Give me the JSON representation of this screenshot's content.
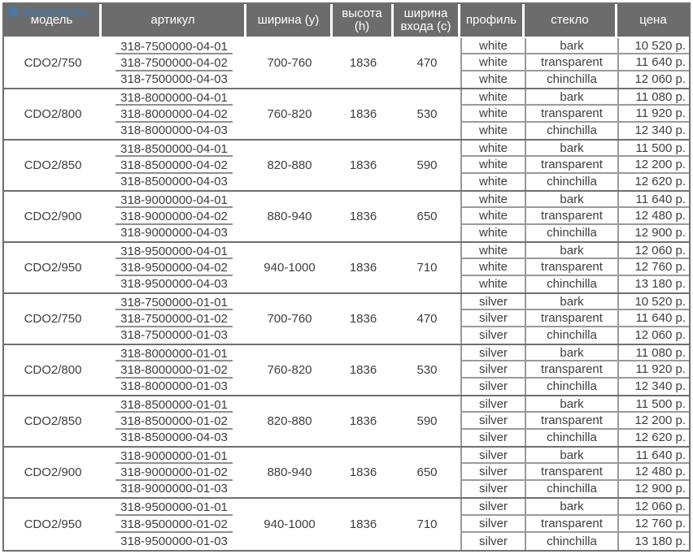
{
  "watermark": {
    "text": "Аквалель"
  },
  "table": {
    "columns": [
      "модель",
      "артикул",
      "ширина (y)",
      "высота (h)",
      "ширина входа (c)",
      "профиль",
      "стекло",
      "цена"
    ],
    "groups": [
      {
        "model": "CDO2/750",
        "articles": [
          "318-7500000-04-01",
          "318-7500000-04-02",
          "318-7500000-04-03"
        ],
        "width": "700-760",
        "height": "1836",
        "entrance": "470",
        "rows": [
          {
            "profile": "white",
            "glass": "bark",
            "price": "10 520 р."
          },
          {
            "profile": "white",
            "glass": "transparent",
            "price": "11 640 р."
          },
          {
            "profile": "white",
            "glass": "chinchilla",
            "price": "12 060 р."
          }
        ]
      },
      {
        "model": "CDO2/800",
        "articles": [
          "318-8000000-04-01",
          "318-8000000-04-02",
          "318-8000000-04-03"
        ],
        "width": "760-820",
        "height": "1836",
        "entrance": "530",
        "rows": [
          {
            "profile": "white",
            "glass": "bark",
            "price": "11 080 р."
          },
          {
            "profile": "white",
            "glass": "transparent",
            "price": "11 920 р."
          },
          {
            "profile": "white",
            "glass": "chinchilla",
            "price": "12 340 р."
          }
        ]
      },
      {
        "model": "CDO2/850",
        "articles": [
          "318-8500000-04-01",
          "318-8500000-04-02",
          "318-8500000-04-03"
        ],
        "width": "820-880",
        "height": "1836",
        "entrance": "590",
        "rows": [
          {
            "profile": "white",
            "glass": "bark",
            "price": "11 500 р."
          },
          {
            "profile": "white",
            "glass": "transparent",
            "price": "12 200 р."
          },
          {
            "profile": "white",
            "glass": "chinchilla",
            "price": "12 620 р."
          }
        ]
      },
      {
        "model": "CDO2/900",
        "articles": [
          "318-9000000-04-01",
          "318-9000000-04-02",
          "318-9000000-04-03"
        ],
        "width": "880-940",
        "height": "1836",
        "entrance": "650",
        "rows": [
          {
            "profile": "white",
            "glass": "bark",
            "price": "11 640 р."
          },
          {
            "profile": "white",
            "glass": "transparent",
            "price": "12 480 р."
          },
          {
            "profile": "white",
            "glass": "chinchilla",
            "price": "12 900 р."
          }
        ]
      },
      {
        "model": "CDO2/950",
        "articles": [
          "318-9500000-04-01",
          "318-9500000-04-02",
          "318-9500000-04-03"
        ],
        "width": "940-1000",
        "height": "1836",
        "entrance": "710",
        "rows": [
          {
            "profile": "white",
            "glass": "bark",
            "price": "12 060 р."
          },
          {
            "profile": "white",
            "glass": "transparent",
            "price": "12 760 р."
          },
          {
            "profile": "white",
            "glass": "chinchilla",
            "price": "13 180 р."
          }
        ]
      },
      {
        "model": "CDO2/750",
        "articles": [
          "318-7500000-01-01",
          "318-7500000-01-02",
          "318-7500000-01-03"
        ],
        "width": "700-760",
        "height": "1836",
        "entrance": "470",
        "rows": [
          {
            "profile": "silver",
            "glass": "bark",
            "price": "10 520 р."
          },
          {
            "profile": "silver",
            "glass": "transparent",
            "price": "11 640 р."
          },
          {
            "profile": "silver",
            "glass": "chinchilla",
            "price": "12 060 р."
          }
        ]
      },
      {
        "model": "CDO2/800",
        "articles": [
          "318-8000000-01-01",
          "318-8000000-01-02",
          "318-8000000-01-03"
        ],
        "width": "760-820",
        "height": "1836",
        "entrance": "530",
        "rows": [
          {
            "profile": "silver",
            "glass": "bark",
            "price": "11 080 р."
          },
          {
            "profile": "silver",
            "glass": "transparent",
            "price": "11 920 р."
          },
          {
            "profile": "silver",
            "glass": "chinchilla",
            "price": "12 340 р."
          }
        ]
      },
      {
        "model": "CDO2/850",
        "articles": [
          "318-8500000-01-01",
          "318-8500000-01-02",
          "318-8500000-04-03"
        ],
        "width": "820-880",
        "height": "1836",
        "entrance": "590",
        "rows": [
          {
            "profile": "silver",
            "glass": "bark",
            "price": "11 500 р."
          },
          {
            "profile": "silver",
            "glass": "transparent",
            "price": "12 200 р."
          },
          {
            "profile": "silver",
            "glass": "chinchilla",
            "price": "12 620 р."
          }
        ]
      },
      {
        "model": "CDO2/900",
        "articles": [
          "318-9000000-01-01",
          "318-9000000-01-02",
          "318-9000000-01-03"
        ],
        "width": "880-940",
        "height": "1836",
        "entrance": "650",
        "rows": [
          {
            "profile": "silver",
            "glass": "bark",
            "price": "11 640 р."
          },
          {
            "profile": "silver",
            "glass": "transparent",
            "price": "12 480 р."
          },
          {
            "profile": "silver",
            "glass": "chinchilla",
            "price": "12 900 р."
          }
        ]
      },
      {
        "model": "CDO2/950",
        "articles": [
          "318-9500000-01-01",
          "318-9500000-01-02",
          "318-9500000-01-03"
        ],
        "width": "940-1000",
        "height": "1836",
        "entrance": "710",
        "rows": [
          {
            "profile": "silver",
            "glass": "bark",
            "price": "12 060 р."
          },
          {
            "profile": "silver",
            "glass": "transparent",
            "price": "12 760 р."
          },
          {
            "profile": "silver",
            "glass": "chinchilla",
            "price": "13 180 р."
          }
        ]
      }
    ]
  }
}
